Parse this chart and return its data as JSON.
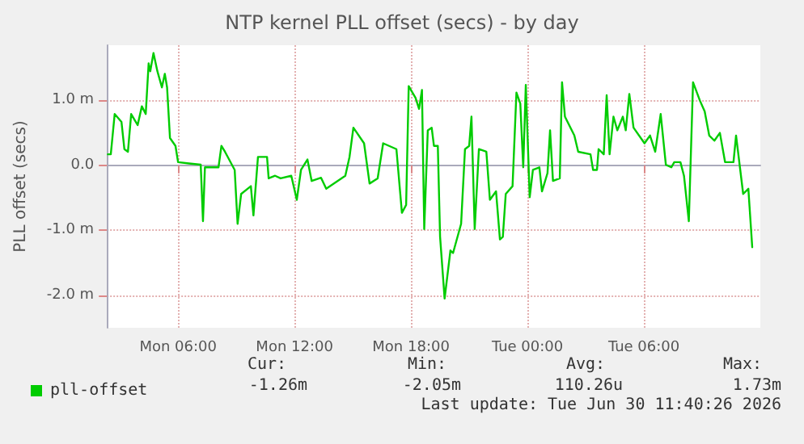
{
  "chart_data": {
    "type": "line",
    "title": "NTP kernel PLL offset (secs) - by day",
    "ylabel": "PLL offset (secs)",
    "xlim": [
      "2026-06-29T02:20",
      "2026-06-30T12:00"
    ],
    "xticks": [
      {
        "value": "2026-06-29T06:00",
        "label": "Mon 06:00"
      },
      {
        "value": "2026-06-29T12:00",
        "label": "Mon 12:00"
      },
      {
        "value": "2026-06-29T18:00",
        "label": "Mon 18:00"
      },
      {
        "value": "2026-06-30T00:00",
        "label": "Tue 00:00"
      },
      {
        "value": "2026-06-30T06:00",
        "label": "Tue 06:00"
      }
    ],
    "ylim": [
      -2.5,
      1.85
    ],
    "yticks": [
      {
        "value": -2,
        "label": "-2.0 m"
      },
      {
        "value": -1,
        "label": "-1.0 m"
      },
      {
        "value": 0,
        "label": "0.0"
      },
      {
        "value": 1,
        "label": "1.0 m"
      }
    ],
    "series": [
      {
        "name": "pll-offset",
        "color": "#00cc00",
        "x": [
          "2026-06-29T02:23",
          "2026-06-29T02:32",
          "2026-06-29T02:44",
          "2026-06-29T03:05",
          "2026-06-29T03:14",
          "2026-06-29T03:25",
          "2026-06-29T03:35",
          "2026-06-29T03:55",
          "2026-06-29T04:08",
          "2026-06-29T04:20",
          "2026-06-29T04:29",
          "2026-06-29T04:34",
          "2026-06-29T04:44",
          "2026-06-29T04:56",
          "2026-06-29T05:10",
          "2026-06-29T05:19",
          "2026-06-29T05:26",
          "2026-06-29T05:35",
          "2026-06-29T05:52",
          "2026-06-29T06:00",
          "2026-06-29T06:34",
          "2026-06-29T07:10",
          "2026-06-29T07:17",
          "2026-06-29T07:23",
          "2026-06-29T08:05",
          "2026-06-29T08:14",
          "2026-06-29T08:25",
          "2026-06-29T08:55",
          "2026-06-29T09:04",
          "2026-06-29T09:15",
          "2026-06-29T09:45",
          "2026-06-29T09:53",
          "2026-06-29T10:07",
          "2026-06-29T10:35",
          "2026-06-29T10:40",
          "2026-06-29T11:00",
          "2026-06-29T11:17",
          "2026-06-29T11:50",
          "2026-06-29T12:07",
          "2026-06-29T12:20",
          "2026-06-29T12:40",
          "2026-06-29T12:53",
          "2026-06-29T13:22",
          "2026-06-29T13:38",
          "2026-06-29T14:37",
          "2026-06-29T14:50",
          "2026-06-29T15:02",
          "2026-06-29T15:35",
          "2026-06-29T15:52",
          "2026-06-29T16:17",
          "2026-06-29T16:34",
          "2026-06-29T17:15",
          "2026-06-29T17:32",
          "2026-06-29T17:45",
          "2026-06-29T17:53",
          "2026-06-29T18:14",
          "2026-06-29T18:25",
          "2026-06-29T18:34",
          "2026-06-29T18:41",
          "2026-06-29T18:52",
          "2026-06-29T19:04",
          "2026-06-29T19:11",
          "2026-06-29T19:23",
          "2026-06-29T19:30",
          "2026-06-29T19:44",
          "2026-06-29T20:02",
          "2026-06-29T20:10",
          "2026-06-29T20:35",
          "2026-06-29T20:47",
          "2026-06-29T21:00",
          "2026-06-29T21:07",
          "2026-06-29T21:17",
          "2026-06-29T21:30",
          "2026-06-29T21:53",
          "2026-06-29T22:04",
          "2026-06-29T22:23",
          "2026-06-29T22:35",
          "2026-06-29T22:44",
          "2026-06-29T22:53",
          "2026-06-29T23:14",
          "2026-06-29T23:26",
          "2026-06-29T23:38",
          "2026-06-29T23:47",
          "2026-06-29T23:55",
          "2026-06-30T00:07",
          "2026-06-30T00:17",
          "2026-06-30T00:37",
          "2026-06-30T00:45",
          "2026-06-30T01:02",
          "2026-06-30T01:10",
          "2026-06-30T01:19",
          "2026-06-30T01:40",
          "2026-06-30T01:47",
          "2026-06-30T01:56",
          "2026-06-30T02:25",
          "2026-06-30T02:37",
          "2026-06-30T03:15",
          "2026-06-30T03:23",
          "2026-06-30T03:35",
          "2026-06-30T03:40",
          "2026-06-30T03:56",
          "2026-06-30T04:05",
          "2026-06-30T04:14",
          "2026-06-30T04:26",
          "2026-06-30T04:38",
          "2026-06-30T04:55",
          "2026-06-30T05:04",
          "2026-06-30T05:15",
          "2026-06-30T05:28",
          "2026-06-30T06:02",
          "2026-06-30T06:19",
          "2026-06-30T06:35",
          "2026-06-30T06:52",
          "2026-06-30T07:08",
          "2026-06-30T07:25",
          "2026-06-30T07:34",
          "2026-06-30T07:53",
          "2026-06-30T08:04",
          "2026-06-30T08:19",
          "2026-06-30T08:32",
          "2026-06-30T08:53",
          "2026-06-30T09:08",
          "2026-06-30T09:22",
          "2026-06-30T09:38",
          "2026-06-30T09:55",
          "2026-06-30T10:11",
          "2026-06-30T10:37",
          "2026-06-30T10:45",
          "2026-06-30T11:07",
          "2026-06-30T11:23",
          "2026-06-30T11:35"
        ],
        "values": [
          0.17,
          0.17,
          0.79,
          0.67,
          0.25,
          0.21,
          0.79,
          0.62,
          0.91,
          0.79,
          1.57,
          1.45,
          1.73,
          1.45,
          1.2,
          1.41,
          1.2,
          0.42,
          0.3,
          0.05,
          0.03,
          0.01,
          -0.86,
          -0.03,
          -0.03,
          0.3,
          0.21,
          -0.07,
          -0.9,
          -0.44,
          -0.32,
          -0.77,
          0.13,
          0.13,
          -0.2,
          -0.16,
          -0.2,
          -0.16,
          -0.53,
          -0.07,
          0.09,
          -0.24,
          -0.19,
          -0.36,
          -0.16,
          0.13,
          0.58,
          0.34,
          -0.28,
          -0.2,
          0.34,
          0.25,
          -0.73,
          -0.61,
          1.22,
          1.04,
          0.87,
          1.16,
          -0.98,
          0.54,
          0.58,
          0.3,
          0.3,
          -1.1,
          -2.05,
          -1.31,
          -1.35,
          -0.9,
          0.25,
          0.3,
          0.75,
          -0.98,
          0.25,
          0.21,
          -0.53,
          -0.4,
          -1.14,
          -1.1,
          -0.44,
          -0.32,
          1.12,
          0.95,
          -0.03,
          1.24,
          -0.49,
          -0.07,
          -0.03,
          -0.4,
          -0.12,
          0.54,
          -0.24,
          -0.2,
          1.28,
          0.75,
          0.46,
          0.21,
          0.17,
          -0.07,
          -0.07,
          0.25,
          0.17,
          1.08,
          0.17,
          0.75,
          0.54,
          0.75,
          0.54,
          1.1,
          0.58,
          0.34,
          0.46,
          0.21,
          0.79,
          0.01,
          -0.03,
          0.05,
          0.05,
          -0.16,
          -0.86,
          1.28,
          1,
          0.83,
          0.46,
          0.38,
          0.5,
          0.05,
          0.05,
          0.46,
          -0.44,
          -0.36,
          -1.26
        ]
      }
    ],
    "annotations": [
      "Cur:",
      "Min:",
      "Avg:",
      "Max:",
      "-1.26m",
      "-2.05m",
      "110.26u",
      "1.73m",
      "Last update: Tue Jun 30 11:40:26 2026"
    ],
    "grid": true,
    "legend": "bottom",
    "marker": "none",
    "line_style": "solid"
  }
}
